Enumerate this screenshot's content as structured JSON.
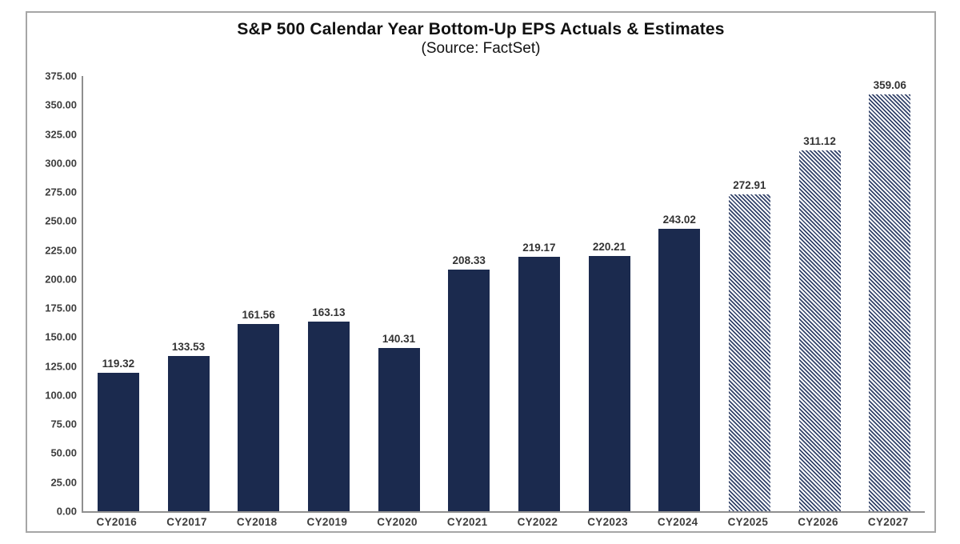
{
  "chart_data": {
    "type": "bar",
    "title": "S&P 500 Calendar Year Bottom-Up EPS Actuals & Estimates",
    "subtitle": "(Source: FactSet)",
    "categories": [
      "CY2016",
      "CY2017",
      "CY2018",
      "CY2019",
      "CY2020",
      "CY2021",
      "CY2022",
      "CY2023",
      "CY2024",
      "CY2025",
      "CY2026",
      "CY2027"
    ],
    "values": [
      119.32,
      133.53,
      161.56,
      163.13,
      140.31,
      208.33,
      219.17,
      220.21,
      243.02,
      272.91,
      311.12,
      359.06
    ],
    "estimate_flags": [
      false,
      false,
      false,
      false,
      false,
      false,
      false,
      false,
      false,
      true,
      true,
      true
    ],
    "value_labels": [
      "119.32",
      "133.53",
      "161.56",
      "163.13",
      "140.31",
      "208.33",
      "219.17",
      "220.21",
      "243.02",
      "272.91",
      "311.12",
      "359.06"
    ],
    "ylim": [
      0,
      375
    ],
    "ytick_step": 25,
    "ytick_decimals": 2,
    "grid": false,
    "legend": "none",
    "bar_style_actuals": "solid fill",
    "bar_style_estimates": "diagonal hatch"
  },
  "colors": {
    "bar_solid": "#1b2a4e",
    "hatch_stripe": "#33436a",
    "frame_border": "#a6a6a6",
    "axis_line": "#8f8f8f",
    "tick_text": "#3d3d3d",
    "value_text": "#333333",
    "title_text": "#111111"
  }
}
